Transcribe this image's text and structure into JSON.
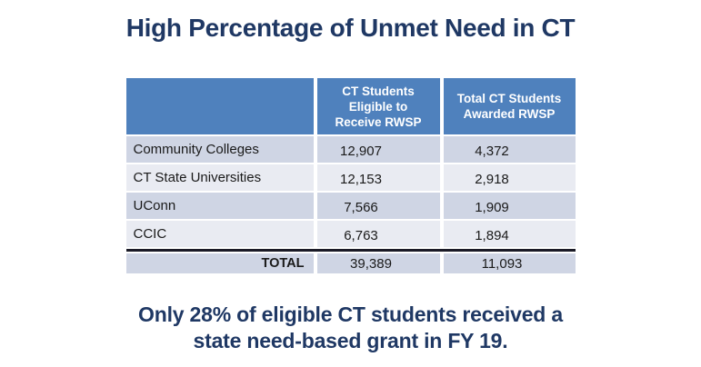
{
  "slide": {
    "title": "High Percentage of Unmet Need in CT",
    "caption_line1": "Only 28% of eligible CT students received a",
    "caption_line2": "state need-based grant in FY 19."
  },
  "table": {
    "header": {
      "col1": "",
      "col2": "CT Students Eligible to Receive RWSP",
      "col3": "Total CT Students Awarded RWSP"
    },
    "rows": [
      {
        "label": "Community Colleges",
        "eligible": "12,907",
        "awarded": "4,372"
      },
      {
        "label": "CT State Universities",
        "eligible": "12,153",
        "awarded": "2,918"
      },
      {
        "label": "UConn",
        "eligible": "7,566",
        "awarded": "1,909"
      },
      {
        "label": "CCIC",
        "eligible": "6,763",
        "awarded": "1,894"
      }
    ],
    "total": {
      "label": "TOTAL",
      "eligible": "39,389",
      "awarded": "11,093"
    }
  },
  "colors": {
    "header_bg": "#4F81BD",
    "row_dark": "#CFD5E4",
    "row_light": "#E9EBF2",
    "navy_text": "#1F3864",
    "divider": "#1A1A26"
  }
}
